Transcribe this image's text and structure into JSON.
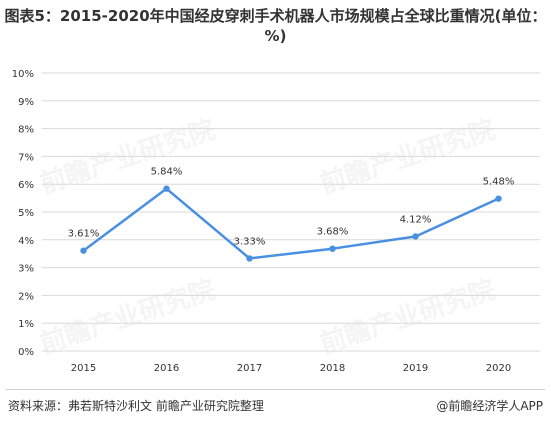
{
  "title": "图表5：2015-2020年中国经皮穿刺手术机器人市场规模占全球比重情况(单位：%)",
  "source": "资料来源：弗若斯特沙利文 前瞻产业研究院整理",
  "brand": "@前瞻经济学人APP",
  "watermark": "前瞻产业研究院",
  "colors": {
    "line": "#4a90e2",
    "grid": "#d9d9d9",
    "text": "#333333"
  },
  "chart_data": {
    "type": "line",
    "categories": [
      "2015",
      "2016",
      "2017",
      "2018",
      "2019",
      "2020"
    ],
    "values": [
      3.61,
      5.84,
      3.33,
      3.68,
      4.12,
      5.48
    ],
    "data_labels": [
      "3.61%",
      "5.84%",
      "3.33%",
      "3.68%",
      "4.12%",
      "5.48%"
    ],
    "yticks": [
      "0%",
      "1%",
      "2%",
      "3%",
      "4%",
      "5%",
      "6%",
      "7%",
      "8%",
      "9%",
      "10%"
    ],
    "ylim": [
      0,
      10
    ],
    "grid": true,
    "legend": "none"
  }
}
